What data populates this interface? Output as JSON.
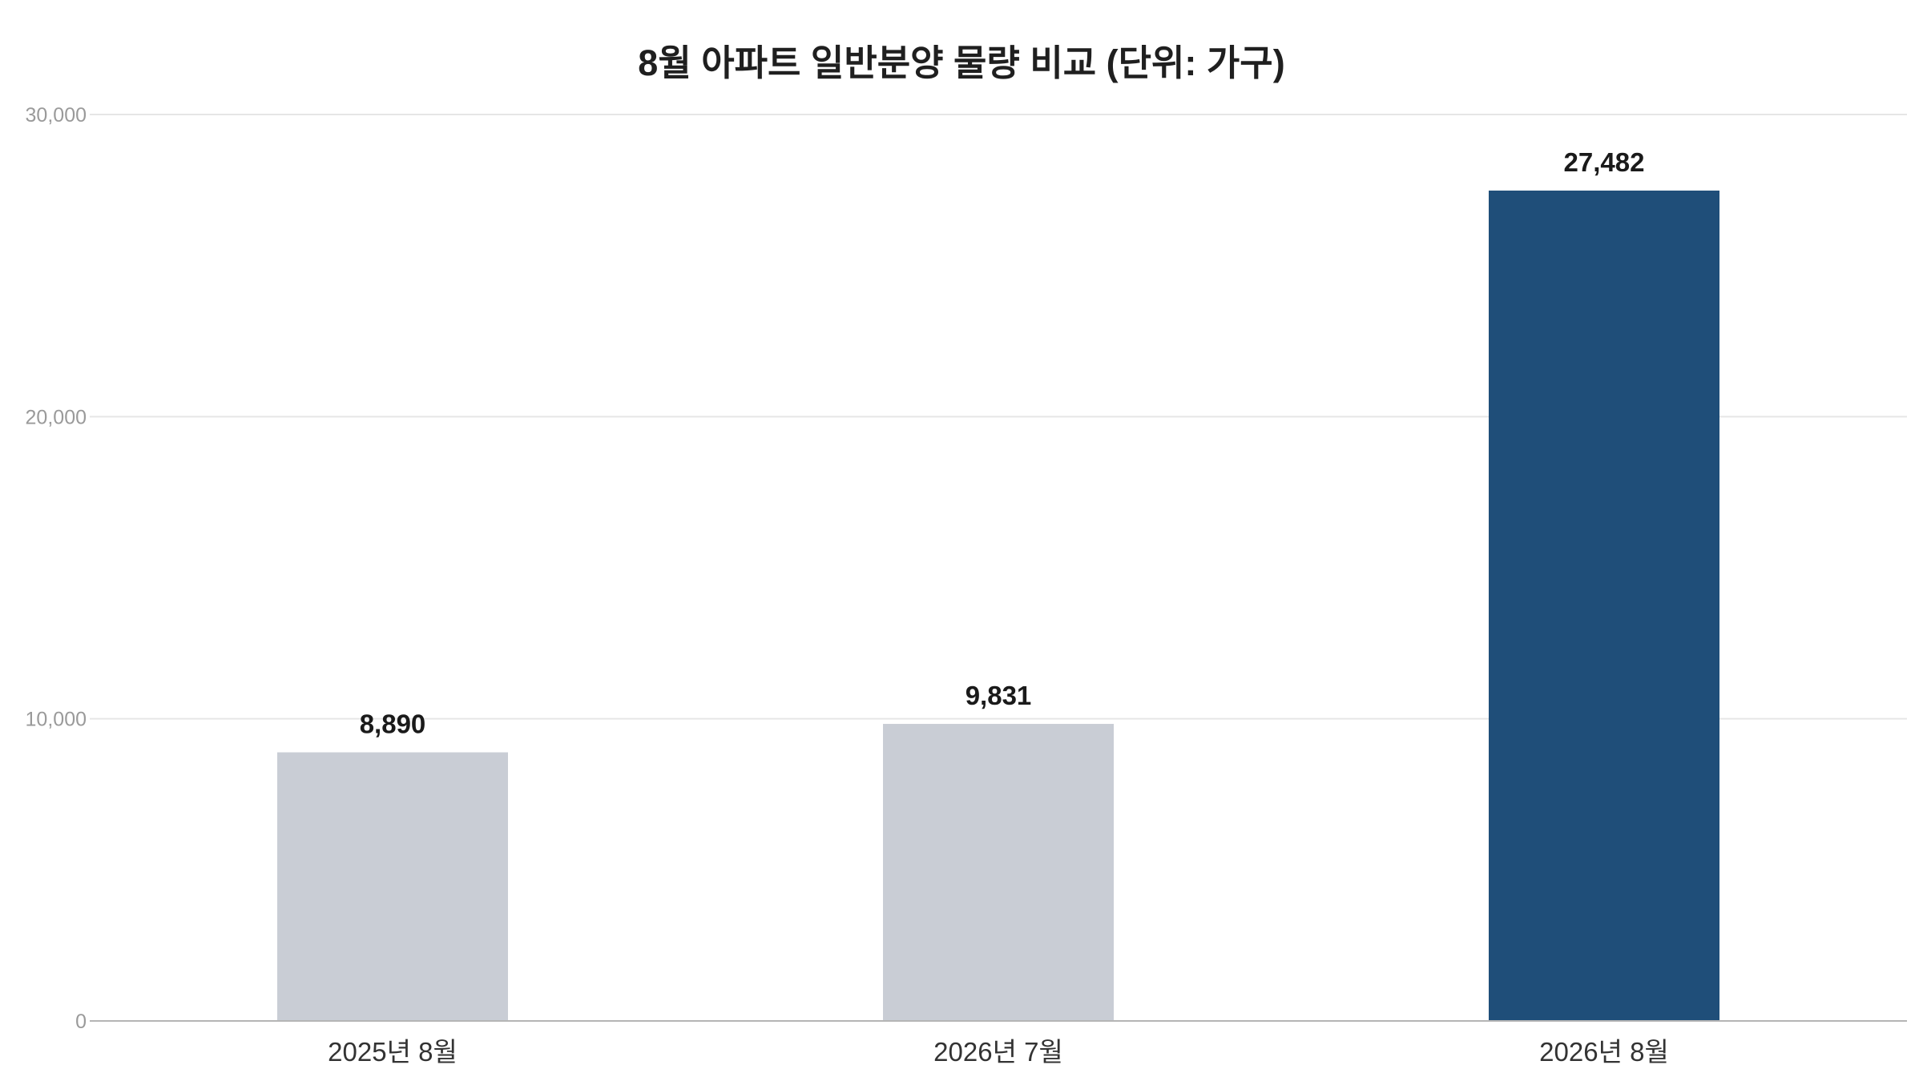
{
  "chart_data": {
    "type": "bar",
    "title": "8월 아파트 일반분양 물량 비교 (단위: 가구)",
    "categories": [
      "2025년 8월",
      "2026년 7월",
      "2026년 8월"
    ],
    "values": [
      8890,
      9831,
      27482
    ],
    "value_labels": [
      "8,890",
      "9,831",
      "27,482"
    ],
    "bar_colors": [
      "#c9cdd5",
      "#c9cdd5",
      "#1f4e79"
    ],
    "ylim": [
      0,
      30000
    ],
    "y_ticks": [
      0,
      10000,
      20000,
      30000
    ],
    "y_tick_labels": [
      "0",
      "10,000",
      "20,000",
      "30,000"
    ],
    "xlabel": "",
    "ylabel": "",
    "grid": true,
    "legend": "none"
  }
}
